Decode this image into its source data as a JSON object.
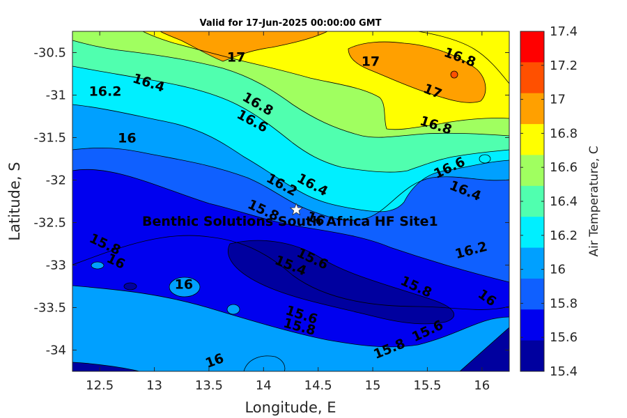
{
  "chart_data": {
    "type": "contour",
    "title": "Valid for 17-Jun-2025 00:00:00 GMT",
    "xlabel": "Longitude, E",
    "ylabel": "Latitude, S",
    "xlim": [
      12.25,
      16.25
    ],
    "ylim": [
      -34.25,
      -30.25
    ],
    "x_ticks": [
      12.5,
      13,
      13.5,
      14,
      14.5,
      15,
      15.5,
      16
    ],
    "x_tick_labels": [
      "12.5",
      "13",
      "13.5",
      "14",
      "14.5",
      "15",
      "15.5",
      "16"
    ],
    "y_ticks": [
      -30.5,
      -31,
      -31.5,
      -32,
      -32.5,
      -33,
      -33.5,
      -34
    ],
    "y_tick_labels": [
      "-30.5",
      "-31",
      "-31.5",
      "-32",
      "-32.5",
      "-33",
      "-33.5",
      "-34"
    ],
    "colorbar": {
      "label": "Air Temperature, C",
      "range": [
        15.4,
        17.4
      ],
      "levels": [
        15.4,
        15.6,
        15.8,
        16,
        16.2,
        16.4,
        16.6,
        16.8,
        17,
        17.2,
        17.4
      ],
      "tick_labels": [
        "15.4",
        "15.6",
        "15.8",
        "16",
        "16.2",
        "16.4",
        "16.6",
        "16.8",
        "17",
        "17.2",
        "17.4"
      ],
      "colors": [
        "#00009f",
        "#0000ef",
        "#0f60ff",
        "#00a0ff",
        "#00efff",
        "#50ffaf",
        "#a0ff60",
        "#ffff00",
        "#ffa000",
        "#ff5000",
        "#ff0000"
      ]
    },
    "site": {
      "name": "Benthic Solutions South Africa HF Site1",
      "lon": 14.3,
      "lat": -32.35
    },
    "contour_labels": [
      {
        "text": "17",
        "lon": 13.75,
        "lat": -30.55
      },
      {
        "text": "17",
        "lon": 14.98,
        "lat": -30.6
      },
      {
        "text": "16.8",
        "lon": 15.8,
        "lat": -30.55
      },
      {
        "text": "17",
        "lon": 15.55,
        "lat": -30.95
      },
      {
        "text": "16.4",
        "lon": 12.95,
        "lat": -30.85
      },
      {
        "text": "16.2",
        "lon": 12.55,
        "lat": -30.95
      },
      {
        "text": "16.8",
        "lon": 13.95,
        "lat": -31.1
      },
      {
        "text": "16.6",
        "lon": 13.9,
        "lat": -31.3
      },
      {
        "text": "16.8",
        "lon": 15.58,
        "lat": -31.35
      },
      {
        "text": "16",
        "lon": 12.75,
        "lat": -31.5
      },
      {
        "text": "16.6",
        "lon": 15.7,
        "lat": -31.85
      },
      {
        "text": "16.2",
        "lon": 14.17,
        "lat": -32.05
      },
      {
        "text": "16.4",
        "lon": 14.45,
        "lat": -32.05
      },
      {
        "text": "16.4",
        "lon": 15.85,
        "lat": -32.12
      },
      {
        "text": "15.8",
        "lon": 14.0,
        "lat": -32.35
      },
      {
        "text": "16",
        "lon": 14.48,
        "lat": -32.45
      },
      {
        "text": "15.8",
        "lon": 12.55,
        "lat": -32.75
      },
      {
        "text": "16.2",
        "lon": 15.9,
        "lat": -32.82
      },
      {
        "text": "15.6",
        "lon": 14.45,
        "lat": -32.92
      },
      {
        "text": "16",
        "lon": 12.65,
        "lat": -32.95
      },
      {
        "text": "15.4",
        "lon": 14.25,
        "lat": -33.0
      },
      {
        "text": "15.8",
        "lon": 15.4,
        "lat": -33.25
      },
      {
        "text": "16",
        "lon": 13.27,
        "lat": -33.22
      },
      {
        "text": "16",
        "lon": 16.05,
        "lat": -33.38
      },
      {
        "text": "15.6",
        "lon": 14.35,
        "lat": -33.58
      },
      {
        "text": "15.8",
        "lon": 14.33,
        "lat": -33.72
      },
      {
        "text": "15.6",
        "lon": 15.5,
        "lat": -33.77
      },
      {
        "text": "15.8",
        "lon": 15.15,
        "lat": -33.98
      },
      {
        "text": "16",
        "lon": 13.55,
        "lat": -34.12
      }
    ]
  }
}
